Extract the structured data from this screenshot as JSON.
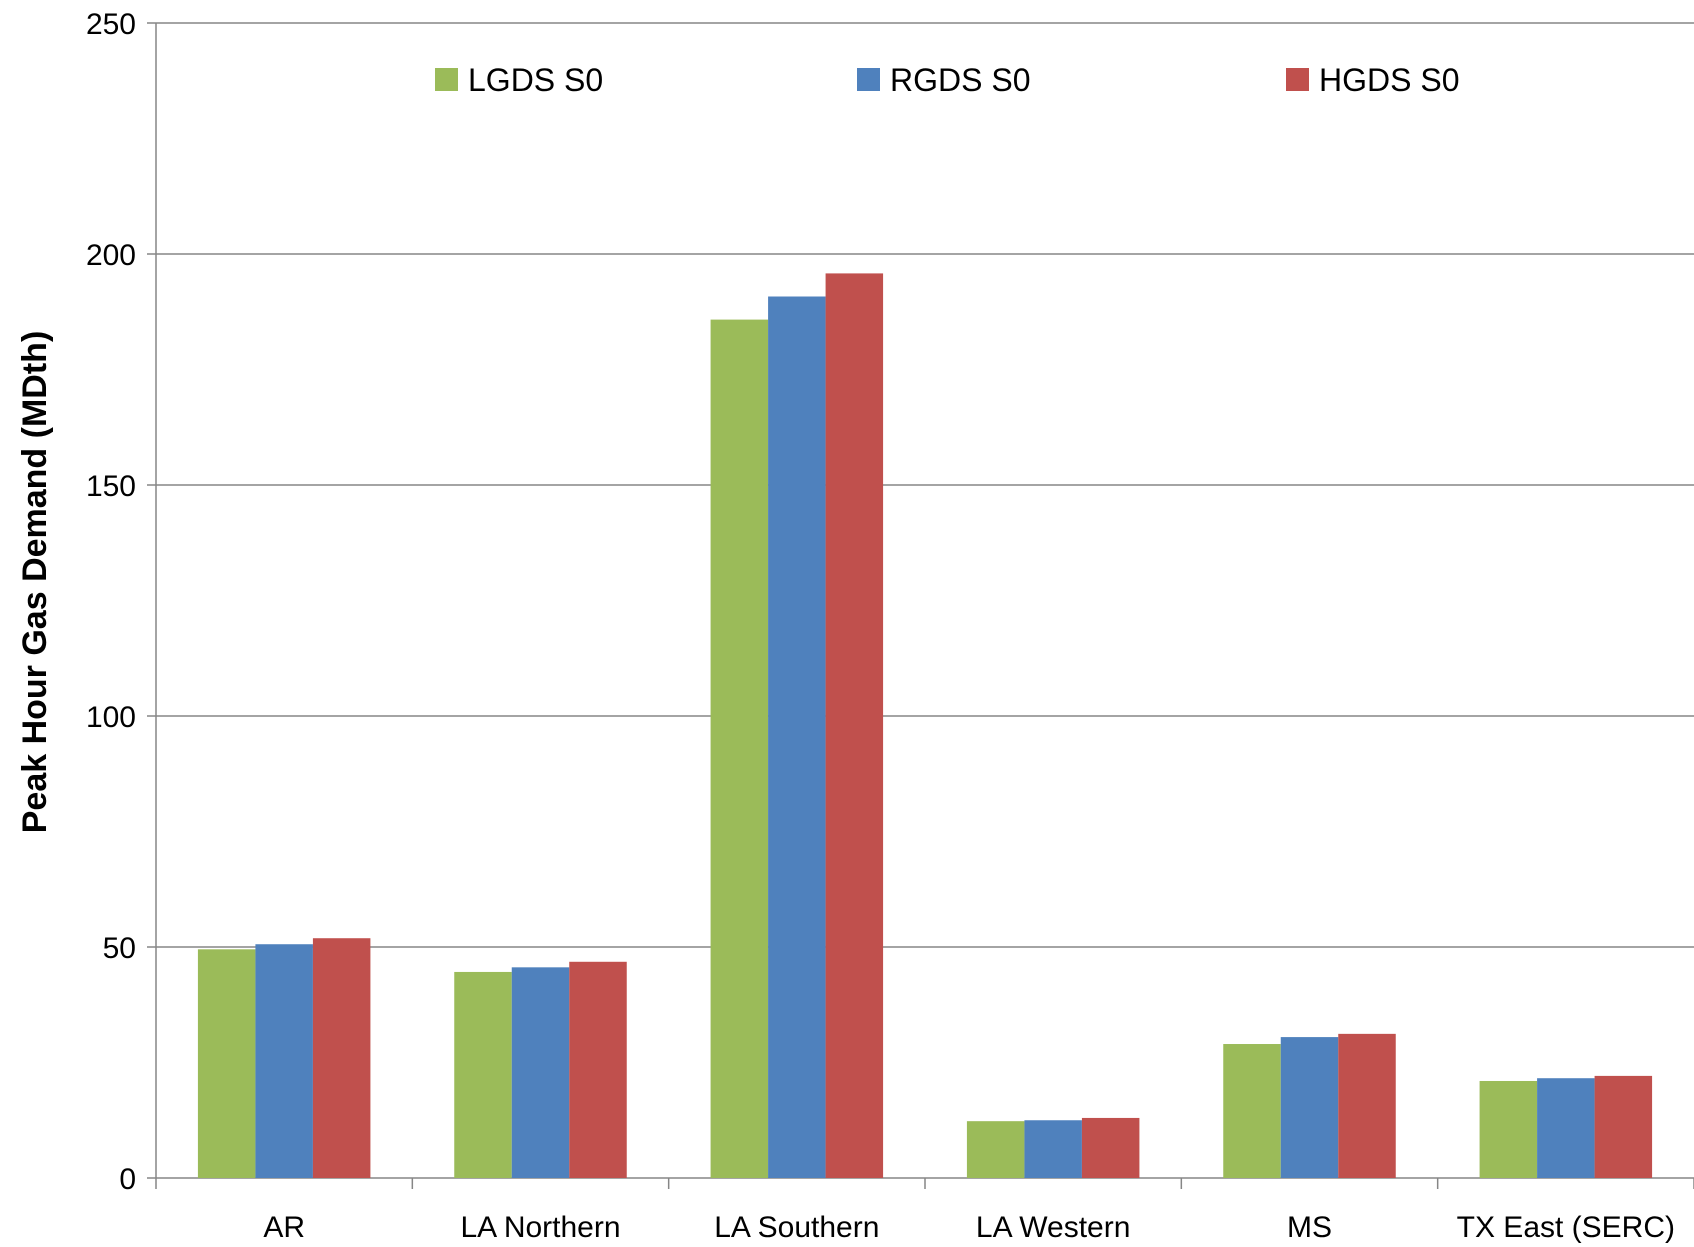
{
  "chart_data": {
    "type": "bar",
    "title": "",
    "xlabel": "",
    "ylabel": "Peak Hour Gas Demand (MDth)",
    "ylim": [
      0,
      250
    ],
    "yticks": [
      0,
      50,
      100,
      150,
      200,
      250
    ],
    "grid": "horizontal",
    "legend_position": "top",
    "categories": [
      "AR",
      "LA Northern",
      "LA Southern",
      "LA Western",
      "MS",
      "TX East (SERC)"
    ],
    "series": [
      {
        "name": "LGDS S0",
        "color": "#9BBB59",
        "values": [
          49.5,
          44.6,
          185.8,
          12.3,
          29.0,
          21.0
        ]
      },
      {
        "name": "RGDS S0",
        "color": "#4F81BD",
        "values": [
          50.6,
          45.6,
          190.8,
          12.5,
          30.5,
          21.6
        ]
      },
      {
        "name": "HGDS S0",
        "color": "#C0504D",
        "values": [
          51.9,
          46.8,
          195.8,
          13.0,
          31.2,
          22.1
        ]
      }
    ]
  }
}
